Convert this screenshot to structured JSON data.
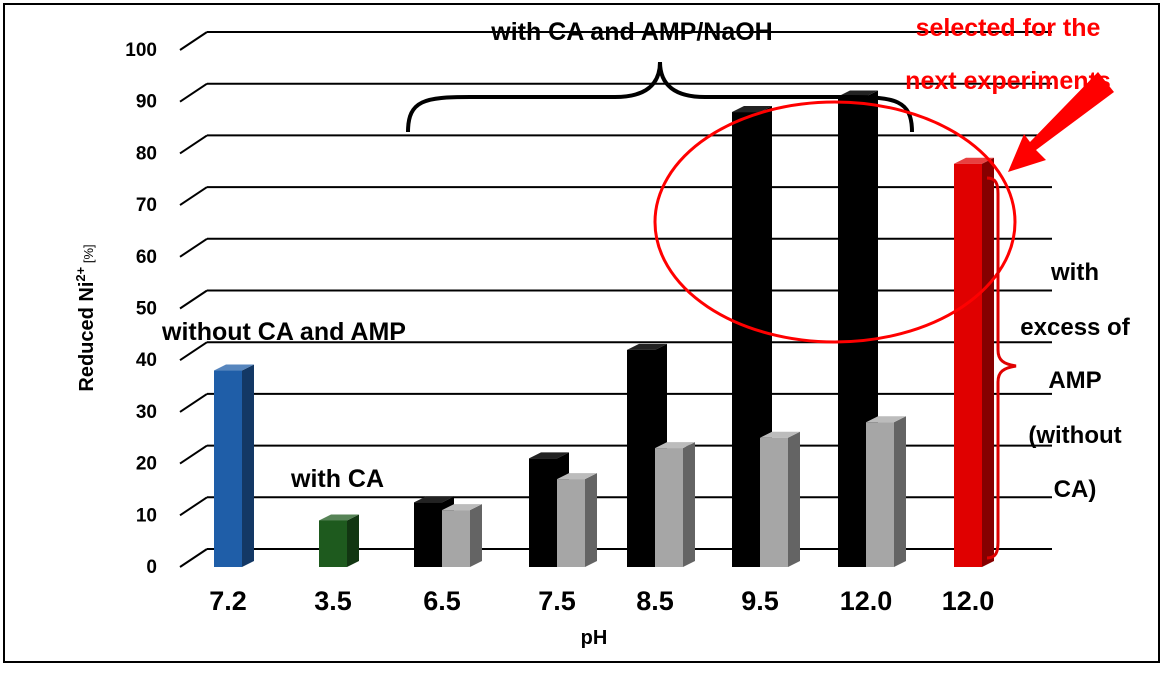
{
  "chart_data": {
    "type": "bar",
    "ylabel_main": "Reduced Ni",
    "ylabel_sup": "2+",
    "ylabel_unit": " [%]",
    "xlabel": "pH",
    "ylim": [
      0,
      100
    ],
    "yticks": [
      0,
      10,
      20,
      30,
      40,
      50,
      60,
      70,
      80,
      90,
      100
    ],
    "categories": [
      "7.2",
      "3.5",
      "6.5",
      "7.5",
      "8.5",
      "9.5",
      "12.0",
      "12.0"
    ],
    "bars": [
      {
        "category_index": 0,
        "slot": 0,
        "value": 38,
        "color": "#1f5ea8"
      },
      {
        "category_index": 1,
        "slot": 0,
        "value": 9,
        "color": "#1e5a1e"
      },
      {
        "category_index": 2,
        "slot": 0,
        "value": 12.5,
        "color": "#000000"
      },
      {
        "category_index": 2,
        "slot": 1,
        "value": 11,
        "color": "#a6a6a6"
      },
      {
        "category_index": 3,
        "slot": 0,
        "value": 21,
        "color": "#000000"
      },
      {
        "category_index": 3,
        "slot": 1,
        "value": 17,
        "color": "#a6a6a6"
      },
      {
        "category_index": 4,
        "slot": 0,
        "value": 42,
        "color": "#000000"
      },
      {
        "category_index": 4,
        "slot": 1,
        "value": 23,
        "color": "#a6a6a6"
      },
      {
        "category_index": 5,
        "slot": 0,
        "value": 88,
        "color": "#000000"
      },
      {
        "category_index": 5,
        "slot": 1,
        "value": 25,
        "color": "#a6a6a6"
      },
      {
        "category_index": 6,
        "slot": 0,
        "value": 91,
        "color": "#000000"
      },
      {
        "category_index": 6,
        "slot": 1,
        "value": 28,
        "color": "#a6a6a6"
      },
      {
        "category_index": 7,
        "slot": 0,
        "value": 78,
        "color": "#e00000"
      }
    ],
    "grid": true
  },
  "annotations": {
    "top_group": "with CA and AMP/NaOH",
    "selected_line1": "selected for the",
    "selected_line2": "next experiments",
    "without": "without CA and AMP",
    "with_ca": "with CA",
    "excess_lines": [
      "with",
      "excess of",
      "AMP",
      "(without",
      "CA)"
    ]
  },
  "colors": {
    "highlight": "#ff0000",
    "gridline": "#000000"
  }
}
